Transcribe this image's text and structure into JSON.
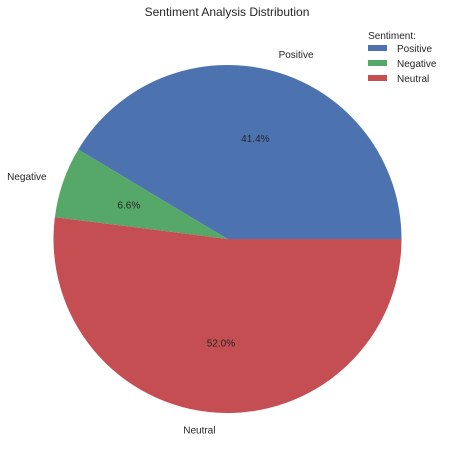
{
  "chart_data": {
    "type": "pie",
    "title": "Sentiment Analysis Distribution",
    "categories": [
      "Positive",
      "Negative",
      "Neutral"
    ],
    "values": [
      41.4,
      6.6,
      52.0
    ],
    "percent_labels": [
      "41.4%",
      "6.6%",
      "52.0%"
    ],
    "colors": [
      "#4c72b0",
      "#55a868",
      "#c44e52"
    ],
    "start_angle_deg": 0,
    "direction": "counterclockwise",
    "legend": {
      "title": "Sentiment:",
      "placement": "top-right",
      "entries": [
        "Positive",
        "Negative",
        "Neutral"
      ]
    }
  }
}
